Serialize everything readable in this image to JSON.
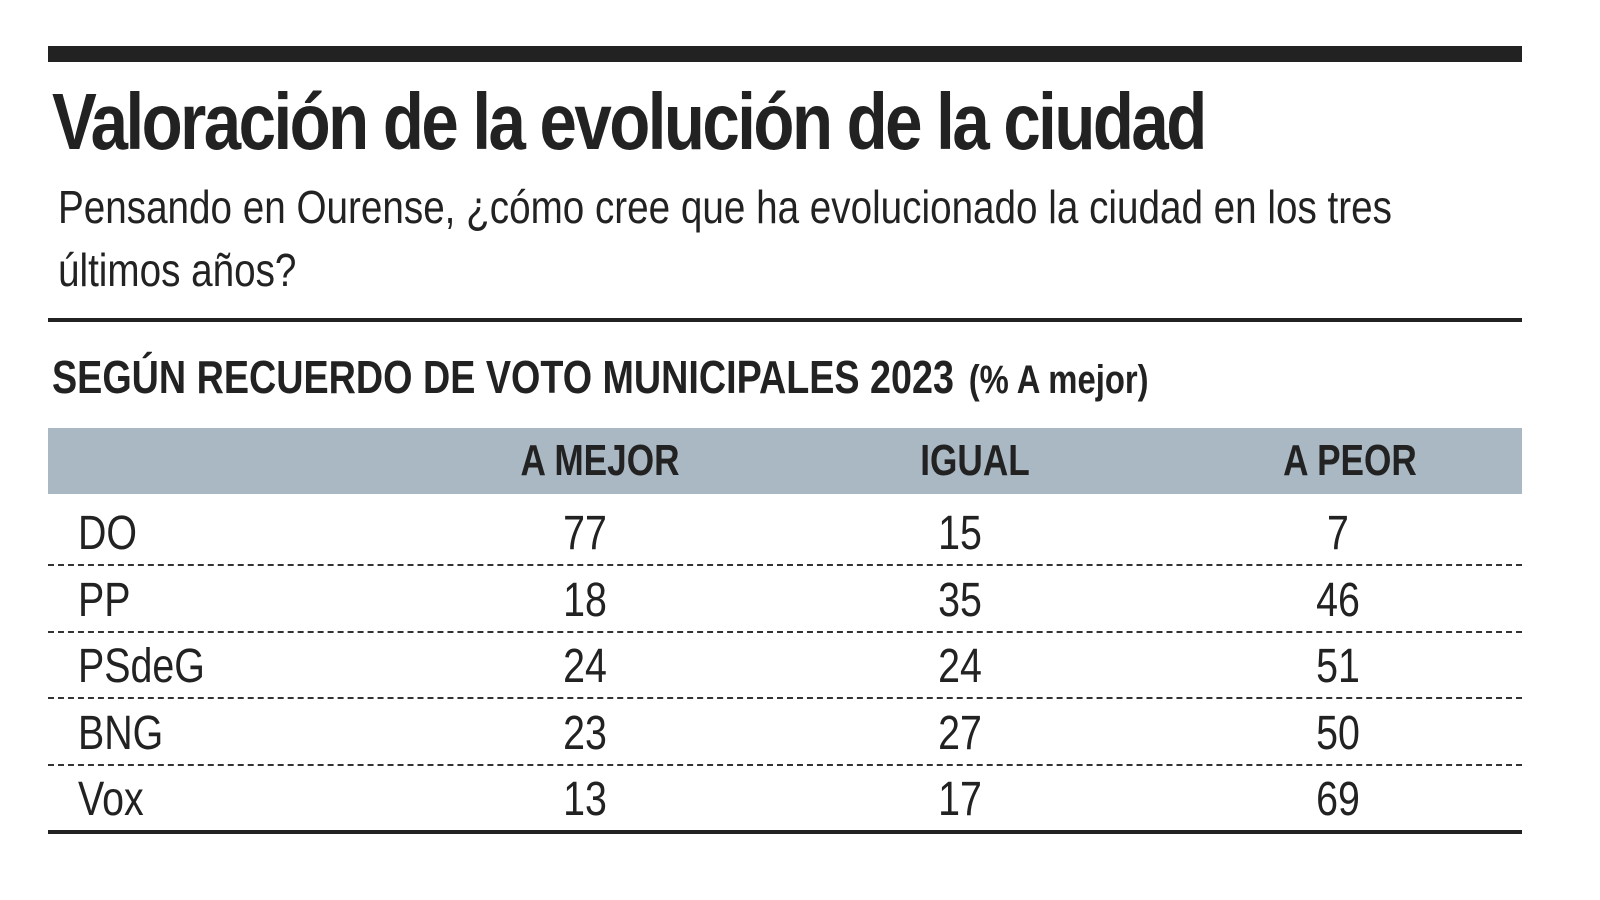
{
  "title": "Valoración de la evolución de la ciudad",
  "subtitle_lines": [
    "Pensando en Ourense, ¿cómo cree que ha evolucionado la ciudad en los tres",
    "últimos años?"
  ],
  "section_title": "SEGÚN RECUERDO DE VOTO MUNICIPALES 2023",
  "section_note": "(% A mejor)",
  "colors": {
    "header_bg": "#a9b8c3",
    "text": "#222222"
  },
  "chart_data": {
    "type": "table",
    "title": "Valoración de la evolución de la ciudad",
    "columns": [
      "",
      "A MEJOR",
      "IGUAL",
      "A PEOR"
    ],
    "rows": [
      {
        "party": "DO",
        "values": [
          77,
          15,
          7
        ]
      },
      {
        "party": "PP",
        "values": [
          18,
          35,
          46
        ]
      },
      {
        "party": "PSdeG",
        "values": [
          24,
          24,
          51
        ]
      },
      {
        "party": "BNG",
        "values": [
          23,
          27,
          50
        ]
      },
      {
        "party": "Vox",
        "values": [
          13,
          17,
          69
        ]
      }
    ]
  }
}
